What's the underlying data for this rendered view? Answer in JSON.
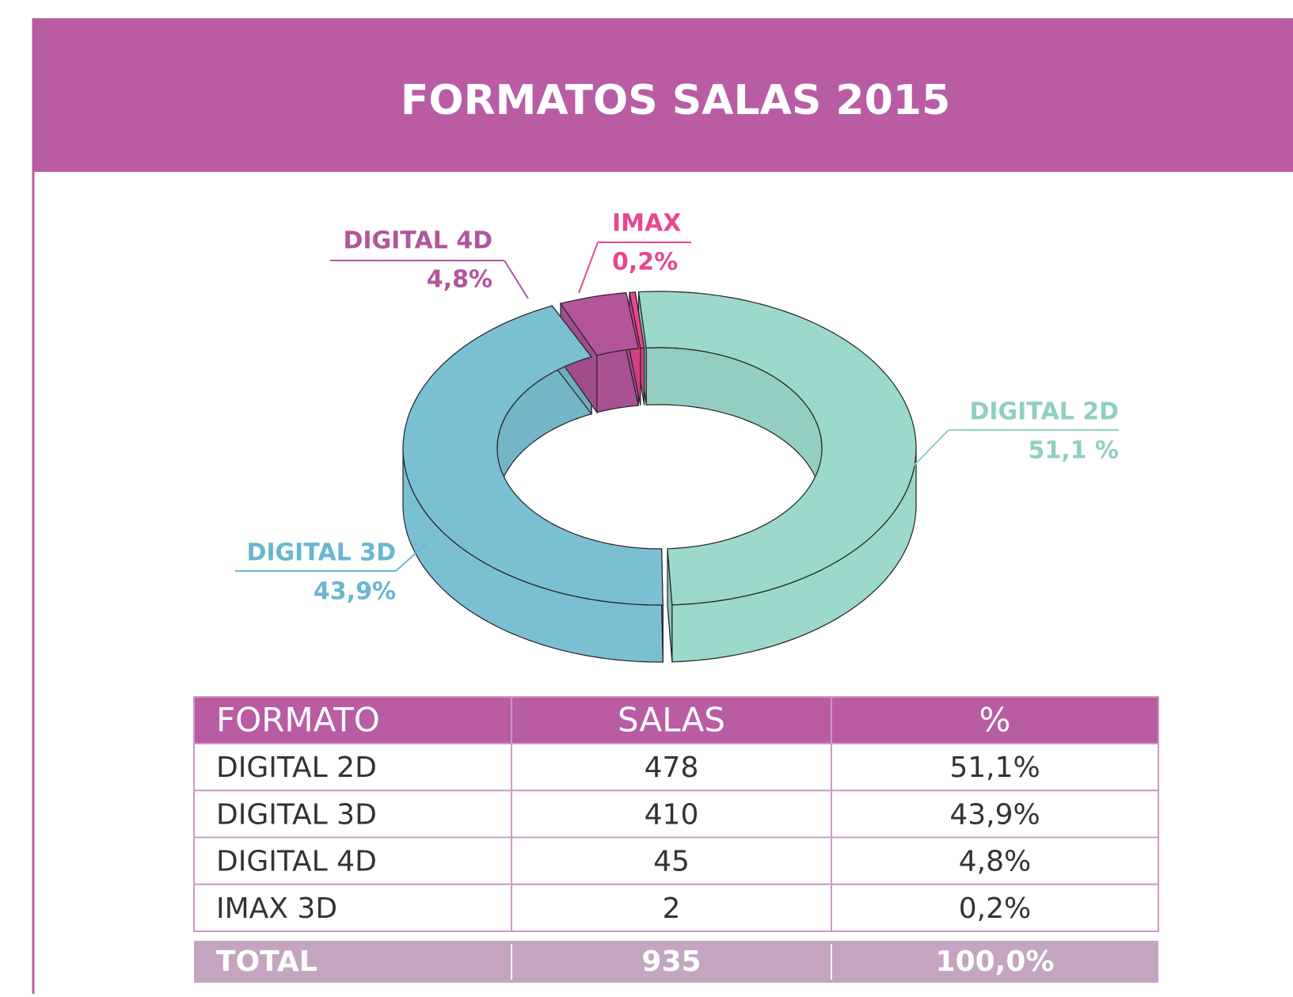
{
  "chart_data": {
    "type": "pie",
    "title": "FORMATOS SALAS 2015",
    "categories": [
      "DIGITAL 2D",
      "DIGITAL 3D",
      "DIGITAL 4D",
      "IMAX"
    ],
    "values": [
      51.1,
      43.9,
      4.8,
      0.2
    ],
    "value_labels": [
      "51,1 %",
      "43,9%",
      "4,8%",
      "0,2%"
    ],
    "colors": [
      "#9cd8cc",
      "#7bbfd3",
      "#b2559b",
      "#e8468f"
    ]
  },
  "table": {
    "header": [
      "FORMATO",
      "SALAS",
      "%"
    ],
    "rows": [
      [
        "DIGITAL 2D",
        478,
        "51,1%"
      ],
      [
        "DIGITAL 3D",
        410,
        "43,9%"
      ],
      [
        "DIGITAL 4D",
        45,
        "4,8%"
      ],
      [
        "IMAX 3D",
        2,
        "0,2%"
      ]
    ],
    "total": [
      "TOTAL",
      935,
      "100,0%"
    ]
  }
}
